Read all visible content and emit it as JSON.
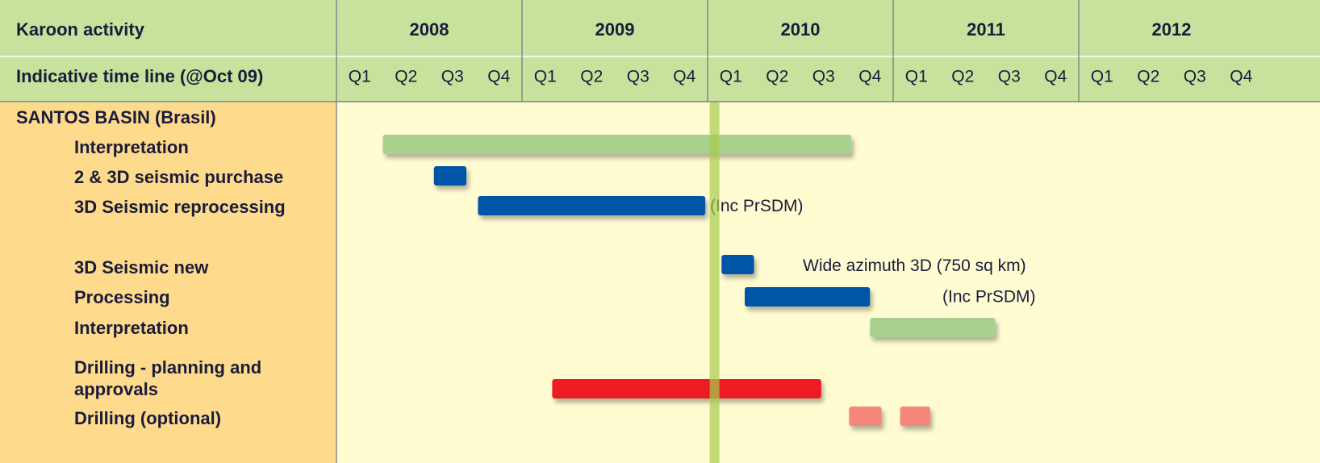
{
  "chart_data": {
    "type": "gantt",
    "header": {
      "title": "Karoon activity",
      "subtitle": "Indicative time line (@Oct 09)"
    },
    "years": [
      "2008",
      "2009",
      "2010",
      "2011",
      "2012"
    ],
    "quarters": [
      "Q1",
      "Q2",
      "Q3",
      "Q4"
    ],
    "xlim": [
      0,
      20
    ],
    "marker": 8.15,
    "rows": [
      {
        "label": "SANTOS BASIN (Brasil)",
        "bars": []
      },
      {
        "label": "Interpretation",
        "bars": [
          {
            "start": 1.0,
            "end": 11.1,
            "color": "#a9d18e"
          }
        ]
      },
      {
        "label": "2 & 3D seismic purchase",
        "bars": [
          {
            "start": 2.1,
            "end": 2.8,
            "color": "#0054a6"
          }
        ]
      },
      {
        "label": "3D Seismic reprocessing",
        "bars": [
          {
            "start": 3.05,
            "end": 7.95,
            "color": "#0054a6"
          }
        ],
        "note": "(Inc PrSDM)"
      },
      {
        "label": "3D Seismic new",
        "bars": [
          {
            "start": 8.3,
            "end": 9.0,
            "color": "#0054a6"
          }
        ],
        "note": "Wide azimuth 3D (750 sq km)"
      },
      {
        "label": "Processing",
        "bars": [
          {
            "start": 8.8,
            "end": 11.5,
            "color": "#0054a6"
          }
        ],
        "note": "(Inc PrSDM)"
      },
      {
        "label": "Interpretation",
        "bars": [
          {
            "start": 11.5,
            "end": 14.2,
            "color": "#a9d18e"
          }
        ]
      },
      {
        "label": [
          "Drilling - planning and",
          "approvals"
        ],
        "bars": [
          {
            "start": 4.65,
            "end": 10.45,
            "color": "#ed1c24"
          }
        ]
      },
      {
        "label": "Drilling (optional)",
        "bars": [
          {
            "start": 11.05,
            "end": 11.75,
            "color": "#f4877a"
          },
          {
            "start": 12.15,
            "end": 12.8,
            "color": "#f4877a"
          }
        ]
      }
    ]
  }
}
